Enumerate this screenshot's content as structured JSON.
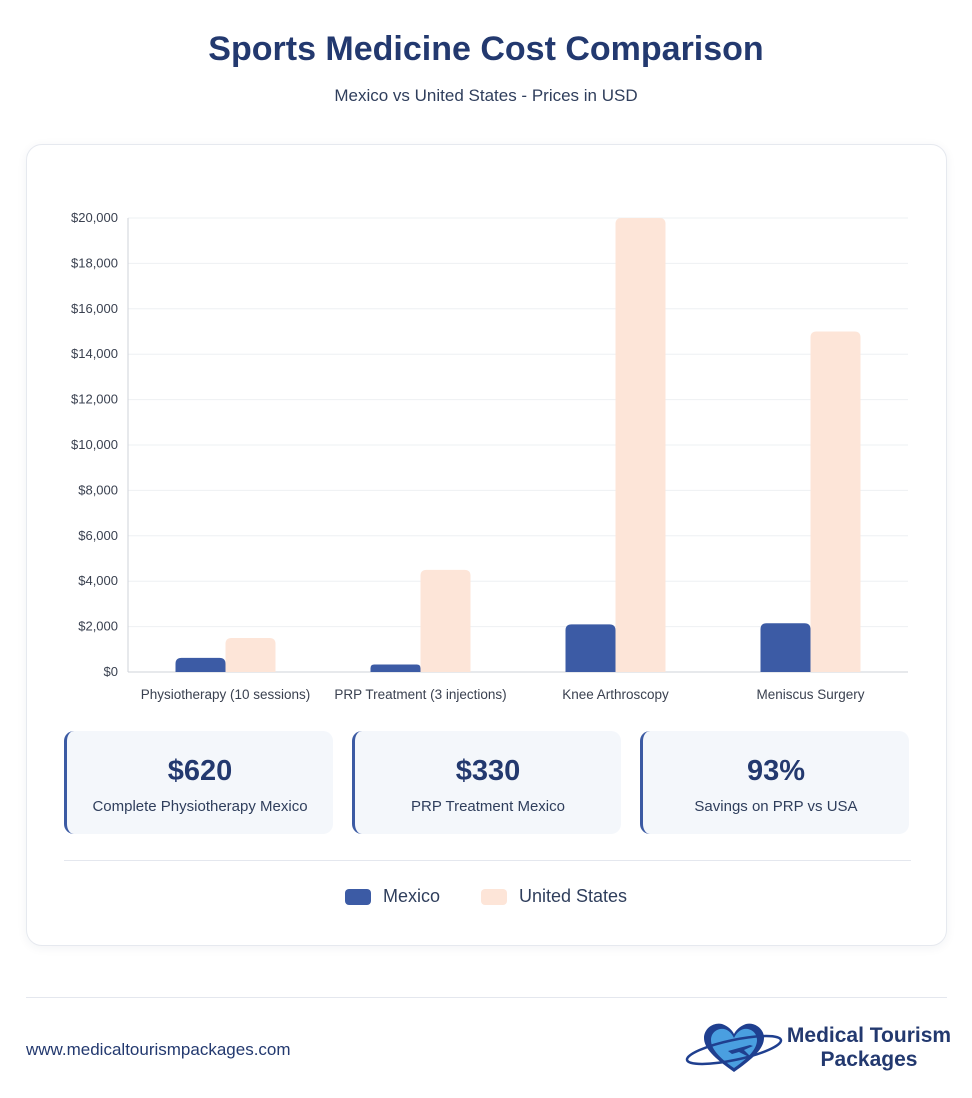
{
  "header": {
    "title": "Sports Medicine Cost Comparison",
    "subtitle": "Mexico vs United States - Prices in USD"
  },
  "chart_data": {
    "type": "bar",
    "categories": [
      "Physiotherapy (10 sessions)",
      "PRP Treatment (3 injections)",
      "Knee Arthroscopy",
      "Meniscus Surgery"
    ],
    "series": [
      {
        "name": "Mexico",
        "color": "#3c5ba5",
        "values": [
          620,
          330,
          2100,
          2150
        ]
      },
      {
        "name": "United States",
        "color": "#fde5d8",
        "values": [
          1500,
          4500,
          20000,
          15000
        ]
      }
    ],
    "ylim": [
      0,
      20000
    ],
    "y_ticks": [
      0,
      2000,
      4000,
      6000,
      8000,
      10000,
      12000,
      14000,
      16000,
      18000,
      20000
    ],
    "y_tick_labels": [
      "$0",
      "$2,000",
      "$4,000",
      "$6,000",
      "$8,000",
      "$10,000",
      "$12,000",
      "$14,000",
      "$16,000",
      "$18,000",
      "$20,000"
    ],
    "grid": true,
    "legend_placement": "bottom"
  },
  "stats": [
    {
      "value": "$620",
      "label": "Complete Physiotherapy Mexico"
    },
    {
      "value": "$330",
      "label": "PRP Treatment Mexico"
    },
    {
      "value": "93%",
      "label": "Savings on PRP vs USA"
    }
  ],
  "legend": {
    "items": [
      {
        "label": "Mexico",
        "color": "#3c5ba5"
      },
      {
        "label": "United States",
        "color": "#fde5d8"
      }
    ]
  },
  "footer": {
    "url": "www.medicaltourismpackages.com",
    "logo_line1": "Medical Tourism",
    "logo_line2": "Packages"
  }
}
